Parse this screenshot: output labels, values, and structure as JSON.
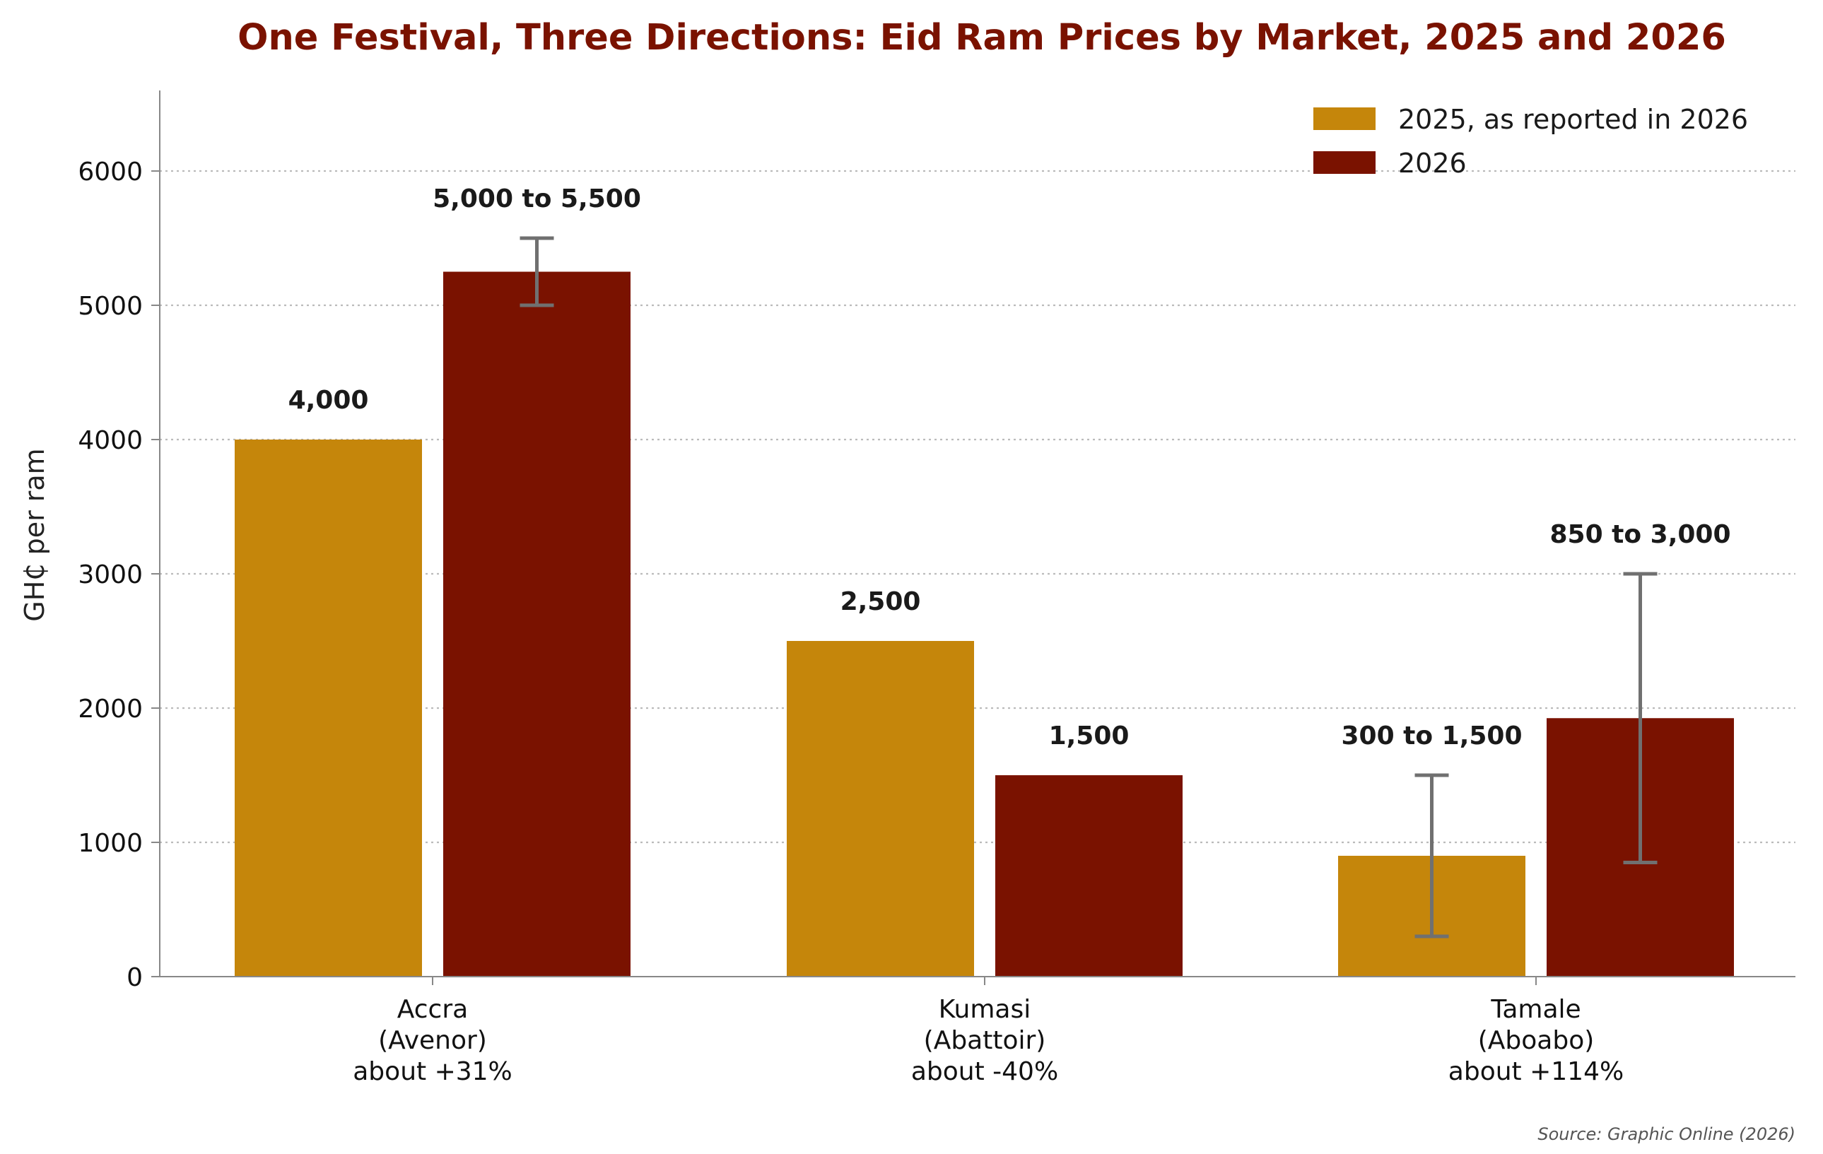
{
  "chart_data": {
    "type": "bar",
    "title": "One Festival, Three Directions: Eid Ram Prices by Market, 2025 and 2026",
    "ylabel": "GH₵ per ram",
    "xlabel": "",
    "ylim": [
      0,
      6600
    ],
    "yticks": [
      0,
      1000,
      2000,
      3000,
      4000,
      5000,
      6000
    ],
    "grid": "horizontal-dotted",
    "legend_position": "top-right",
    "categories": [
      [
        "Accra",
        "(Avenor)",
        "about +31%"
      ],
      [
        "Kumasi",
        "(Abattoir)",
        "about -40%"
      ],
      [
        "Tamale",
        "(Aboabo)",
        "about +114%"
      ]
    ],
    "series": [
      {
        "name": "2025, as reported in 2026",
        "color": "#C5860B",
        "values": [
          4000,
          2500,
          900
        ],
        "error_ranges": [
          null,
          null,
          [
            300,
            1500
          ]
        ],
        "labels": [
          "4,000",
          "2,500",
          "300 to 1,500"
        ]
      },
      {
        "name": "2026",
        "color": "#7A1200",
        "values": [
          5250,
          1500,
          1925
        ],
        "error_ranges": [
          [
            5000,
            5500
          ],
          null,
          [
            850,
            3000
          ]
        ],
        "labels": [
          "5,000 to 5,500",
          "1,500",
          "850 to 3,000"
        ]
      }
    ],
    "source": "Source: Graphic Online (2026)",
    "colors": {
      "title": "#7A1200",
      "axis": "#888888",
      "grid": "#bbbbbb",
      "error_bar": "#707070"
    }
  }
}
